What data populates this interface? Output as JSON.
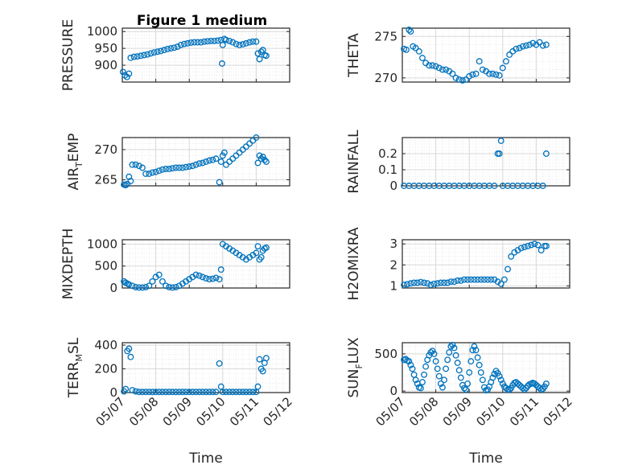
{
  "figure_title": "Figure 1 medium",
  "colors": {
    "marker": "#0072bd",
    "axis": "#262626",
    "grid": "#d9d9d9",
    "minor_grid": "#e6e6e6"
  },
  "x_ticks": [
    "05/07",
    "05/08",
    "05/09",
    "05/10",
    "05/11",
    "05/12"
  ],
  "chart_data": [
    {
      "type": "scatter",
      "ylabel": "PRESSURE",
      "ylabel_parts": [
        "PRESSURE"
      ],
      "xlabel": "",
      "xlim": [
        0,
        5
      ],
      "ylim": [
        850,
        1010
      ],
      "yticks": [
        900,
        950,
        1000
      ],
      "grid": true,
      "minor_grid": true,
      "x": [
        0.02,
        0.08,
        0.14,
        0.2,
        0.25,
        0.35,
        0.45,
        0.55,
        0.65,
        0.75,
        0.85,
        0.95,
        1.05,
        1.15,
        1.25,
        1.35,
        1.45,
        1.55,
        1.65,
        1.75,
        1.85,
        1.95,
        2.05,
        2.15,
        2.25,
        2.35,
        2.45,
        2.55,
        2.65,
        2.75,
        2.85,
        2.95,
        2.98,
        3.0,
        3.05,
        3.1,
        3.2,
        3.3,
        3.4,
        3.5,
        3.6,
        3.7,
        3.8,
        3.9,
        4.0,
        4.05,
        4.1,
        4.15,
        4.2,
        4.25,
        4.3
      ],
      "y": [
        880,
        870,
        865,
        875,
        922,
        925,
        926,
        928,
        930,
        932,
        935,
        938,
        940,
        942,
        945,
        948,
        950,
        952,
        955,
        960,
        963,
        965,
        967,
        968,
        968,
        968,
        970,
        971,
        972,
        972,
        973,
        975,
        905,
        960,
        978,
        975,
        972,
        968,
        963,
        960,
        962,
        965,
        968,
        970,
        970,
        935,
        918,
        940,
        945,
        930,
        928
      ]
    },
    {
      "type": "scatter",
      "ylabel": "THETA",
      "ylabel_parts": [
        "THETA"
      ],
      "xlabel": "",
      "xlim": [
        0,
        5
      ],
      "ylim": [
        269.5,
        276
      ],
      "yticks": [
        270,
        275
      ],
      "grid": true,
      "minor_grid": true,
      "x": [
        0.05,
        0.12,
        0.2,
        0.25,
        0.32,
        0.4,
        0.5,
        0.6,
        0.7,
        0.8,
        0.9,
        1.0,
        1.1,
        1.2,
        1.3,
        1.4,
        1.5,
        1.6,
        1.7,
        1.8,
        1.9,
        2.0,
        2.1,
        2.2,
        2.3,
        2.4,
        2.5,
        2.6,
        2.7,
        2.8,
        2.9,
        3.0,
        3.1,
        3.2,
        3.3,
        3.4,
        3.5,
        3.6,
        3.7,
        3.8,
        3.9,
        4.0,
        4.1,
        4.2,
        4.3
      ],
      "y": [
        273.5,
        273.4,
        275.8,
        275.6,
        273.8,
        273.6,
        273.2,
        272.4,
        271.8,
        271.5,
        271.5,
        271.4,
        271.2,
        271.0,
        271.0,
        270.8,
        270.5,
        270.0,
        269.8,
        269.7,
        269.8,
        270.2,
        270.4,
        270.5,
        272.0,
        271.0,
        270.8,
        270.5,
        270.5,
        270.4,
        270.3,
        271.2,
        272.0,
        272.8,
        273.2,
        273.5,
        273.6,
        273.8,
        273.9,
        274.0,
        274.2,
        274.0,
        274.3,
        273.9,
        274.0
      ]
    },
    {
      "type": "scatter",
      "ylabel": "AIR_TEMP",
      "ylabel_parts": [
        "AIR",
        "T",
        "EMP"
      ],
      "xlabel": "",
      "xlim": [
        0,
        5
      ],
      "ylim": [
        264,
        272
      ],
      "yticks": [
        265,
        270
      ],
      "grid": true,
      "minor_grid": true,
      "x": [
        0.05,
        0.1,
        0.15,
        0.2,
        0.25,
        0.3,
        0.4,
        0.5,
        0.6,
        0.7,
        0.8,
        0.9,
        1.0,
        1.1,
        1.2,
        1.3,
        1.4,
        1.5,
        1.6,
        1.7,
        1.8,
        1.9,
        2.0,
        2.1,
        2.2,
        2.3,
        2.4,
        2.5,
        2.6,
        2.7,
        2.8,
        2.9,
        2.95,
        3.0,
        3.05,
        3.1,
        3.2,
        3.3,
        3.4,
        3.5,
        3.6,
        3.7,
        3.8,
        3.9,
        4.0,
        4.05,
        4.1,
        4.15,
        4.2,
        4.25,
        4.3
      ],
      "y": [
        264.2,
        264.1,
        264.3,
        265.5,
        264.8,
        267.5,
        267.5,
        267.3,
        267.0,
        266.0,
        266.0,
        266.2,
        266.3,
        266.5,
        266.7,
        266.8,
        266.8,
        266.9,
        267.0,
        267.0,
        267.0,
        267.1,
        267.2,
        267.3,
        267.5,
        267.7,
        267.8,
        268.0,
        268.2,
        268.3,
        268.5,
        264.6,
        268.0,
        269.0,
        269.5,
        267.5,
        268.0,
        268.5,
        269.0,
        269.5,
        270.0,
        270.5,
        271.0,
        271.5,
        272.0,
        267.8,
        269.0,
        268.5,
        268.8,
        268.3,
        268.0
      ]
    },
    {
      "type": "scatter",
      "ylabel": "RAINFALL",
      "ylabel_parts": [
        "RAINFALL"
      ],
      "xlabel": "",
      "xlim": [
        0,
        5
      ],
      "ylim": [
        0,
        0.3
      ],
      "yticks": [
        0,
        0.1,
        0.2
      ],
      "grid": true,
      "minor_grid": true,
      "x": [
        0.05,
        0.2,
        0.35,
        0.5,
        0.65,
        0.8,
        0.95,
        1.1,
        1.25,
        1.4,
        1.55,
        1.7,
        1.85,
        2.0,
        2.15,
        2.3,
        2.45,
        2.6,
        2.75,
        2.85,
        2.9,
        2.95,
        3.0,
        3.15,
        3.3,
        3.45,
        3.6,
        3.75,
        3.9,
        4.05,
        4.2,
        4.3
      ],
      "y": [
        0,
        0,
        0,
        0,
        0,
        0,
        0,
        0,
        0,
        0,
        0,
        0,
        0,
        0,
        0,
        0,
        0,
        0,
        0,
        0.2,
        0.2,
        0.28,
        0,
        0,
        0,
        0,
        0,
        0,
        0,
        0,
        0,
        0.2
      ]
    },
    {
      "type": "scatter",
      "ylabel": "MIXDEPTH",
      "ylabel_parts": [
        "MIXDEPTH"
      ],
      "xlabel": "",
      "xlim": [
        0,
        5
      ],
      "ylim": [
        0,
        1100
      ],
      "yticks": [
        0,
        500,
        1000
      ],
      "grid": true,
      "minor_grid": true,
      "x": [
        0.05,
        0.1,
        0.15,
        0.2,
        0.3,
        0.4,
        0.5,
        0.6,
        0.7,
        0.8,
        0.9,
        1.0,
        1.1,
        1.2,
        1.3,
        1.4,
        1.5,
        1.6,
        1.7,
        1.8,
        1.9,
        2.0,
        2.1,
        2.2,
        2.3,
        2.4,
        2.5,
        2.6,
        2.7,
        2.8,
        2.9,
        2.95,
        3.0,
        3.1,
        3.2,
        3.3,
        3.4,
        3.5,
        3.6,
        3.7,
        3.8,
        3.9,
        4.0,
        4.05,
        4.1,
        4.15,
        4.2,
        4.25,
        4.3
      ],
      "y": [
        150,
        120,
        100,
        80,
        50,
        20,
        10,
        10,
        20,
        50,
        150,
        250,
        300,
        150,
        50,
        20,
        10,
        20,
        50,
        100,
        150,
        200,
        250,
        300,
        280,
        250,
        220,
        200,
        210,
        230,
        200,
        420,
        1000,
        950,
        900,
        850,
        800,
        750,
        700,
        650,
        700,
        750,
        800,
        950,
        650,
        700,
        850,
        900,
        920
      ]
    },
    {
      "type": "scatter",
      "ylabel": "H2OMIXRA",
      "ylabel_parts": [
        "H2OMIXRA"
      ],
      "xlabel": "",
      "xlim": [
        0,
        5
      ],
      "ylim": [
        0.9,
        3.2
      ],
      "yticks": [
        1,
        2,
        3
      ],
      "grid": true,
      "minor_grid": true,
      "x": [
        0.05,
        0.15,
        0.25,
        0.35,
        0.45,
        0.55,
        0.65,
        0.75,
        0.85,
        0.95,
        1.05,
        1.15,
        1.25,
        1.35,
        1.45,
        1.55,
        1.65,
        1.75,
        1.85,
        1.95,
        2.05,
        2.15,
        2.25,
        2.35,
        2.45,
        2.55,
        2.65,
        2.75,
        2.85,
        2.95,
        3.05,
        3.15,
        3.25,
        3.35,
        3.45,
        3.55,
        3.65,
        3.75,
        3.85,
        3.95,
        4.05,
        4.15,
        4.25,
        4.3
      ],
      "y": [
        1.05,
        1.08,
        1.12,
        1.15,
        1.15,
        1.18,
        1.15,
        1.12,
        1.05,
        1.1,
        1.12,
        1.15,
        1.15,
        1.15,
        1.2,
        1.2,
        1.25,
        1.25,
        1.3,
        1.3,
        1.3,
        1.3,
        1.3,
        1.3,
        1.3,
        1.3,
        1.3,
        1.3,
        1.2,
        1.1,
        1.3,
        1.8,
        2.4,
        2.6,
        2.7,
        2.8,
        2.85,
        2.9,
        2.95,
        3.0,
        2.95,
        2.7,
        2.9,
        2.9
      ]
    },
    {
      "type": "scatter",
      "ylabel": "TERR_MSL",
      "ylabel_parts": [
        "TERR",
        "M",
        "SL"
      ],
      "xlabel": "Time",
      "xlim": [
        0,
        5
      ],
      "ylim": [
        0,
        420
      ],
      "yticks": [
        0,
        200,
        400
      ],
      "grid": true,
      "minor_grid": true,
      "x": [
        0.05,
        0.1,
        0.15,
        0.2,
        0.25,
        0.3,
        0.4,
        0.5,
        0.6,
        0.7,
        0.8,
        0.9,
        1.0,
        1.1,
        1.2,
        1.3,
        1.4,
        1.5,
        1.6,
        1.7,
        1.8,
        1.9,
        2.0,
        2.1,
        2.2,
        2.3,
        2.4,
        2.5,
        2.6,
        2.7,
        2.8,
        2.9,
        2.95,
        3.0,
        3.1,
        3.2,
        3.3,
        3.4,
        3.5,
        3.6,
        3.7,
        3.8,
        3.9,
        4.0,
        4.05,
        4.1,
        4.15,
        4.2,
        4.25,
        4.3
      ],
      "y": [
        10,
        30,
        350,
        370,
        300,
        20,
        10,
        5,
        5,
        5,
        5,
        5,
        5,
        5,
        5,
        5,
        5,
        5,
        5,
        5,
        5,
        5,
        5,
        5,
        5,
        5,
        5,
        5,
        5,
        5,
        5,
        245,
        50,
        5,
        5,
        5,
        5,
        5,
        5,
        5,
        5,
        5,
        5,
        5,
        50,
        280,
        200,
        180,
        250,
        290
      ]
    },
    {
      "type": "scatter",
      "ylabel": "SUN_FLUX",
      "ylabel_parts": [
        "SUN",
        "F",
        "LUX"
      ],
      "xlabel": "Time",
      "xlim": [
        0,
        5
      ],
      "ylim": [
        -20,
        650
      ],
      "yticks": [
        0,
        500
      ],
      "grid": true,
      "minor_grid": true,
      "x": [
        0.05,
        0.1,
        0.15,
        0.2,
        0.25,
        0.3,
        0.35,
        0.4,
        0.45,
        0.5,
        0.55,
        0.6,
        0.65,
        0.7,
        0.75,
        0.8,
        0.85,
        0.9,
        0.95,
        1.0,
        1.05,
        1.1,
        1.15,
        1.2,
        1.25,
        1.3,
        1.35,
        1.4,
        1.45,
        1.5,
        1.55,
        1.6,
        1.65,
        1.7,
        1.75,
        1.8,
        1.85,
        1.9,
        1.95,
        2.0,
        2.05,
        2.1,
        2.15,
        2.2,
        2.25,
        2.3,
        2.35,
        2.4,
        2.45,
        2.5,
        2.55,
        2.6,
        2.65,
        2.7,
        2.75,
        2.8,
        2.85,
        2.9,
        2.95,
        3.0,
        3.05,
        3.1,
        3.15,
        3.2,
        3.25,
        3.3,
        3.35,
        3.4,
        3.45,
        3.5,
        3.55,
        3.6,
        3.65,
        3.7,
        3.75,
        3.8,
        3.85,
        3.9,
        3.95,
        4.0,
        4.05,
        4.1,
        4.15,
        4.2,
        4.25,
        4.3
      ],
      "y": [
        420,
        430,
        410,
        400,
        350,
        300,
        220,
        150,
        100,
        50,
        40,
        120,
        220,
        330,
        420,
        480,
        520,
        540,
        500,
        400,
        300,
        200,
        100,
        50,
        150,
        300,
        420,
        520,
        600,
        620,
        580,
        480,
        380,
        280,
        180,
        80,
        40,
        20,
        100,
        250,
        400,
        550,
        600,
        550,
        450,
        350,
        250,
        150,
        50,
        10,
        20,
        60,
        120,
        180,
        230,
        270,
        240,
        200,
        150,
        100,
        60,
        40,
        20,
        20,
        40,
        80,
        110,
        120,
        100,
        80,
        60,
        40,
        20,
        40,
        70,
        90,
        100,
        110,
        100,
        80,
        60,
        40,
        20,
        30,
        60,
        100
      ]
    }
  ]
}
